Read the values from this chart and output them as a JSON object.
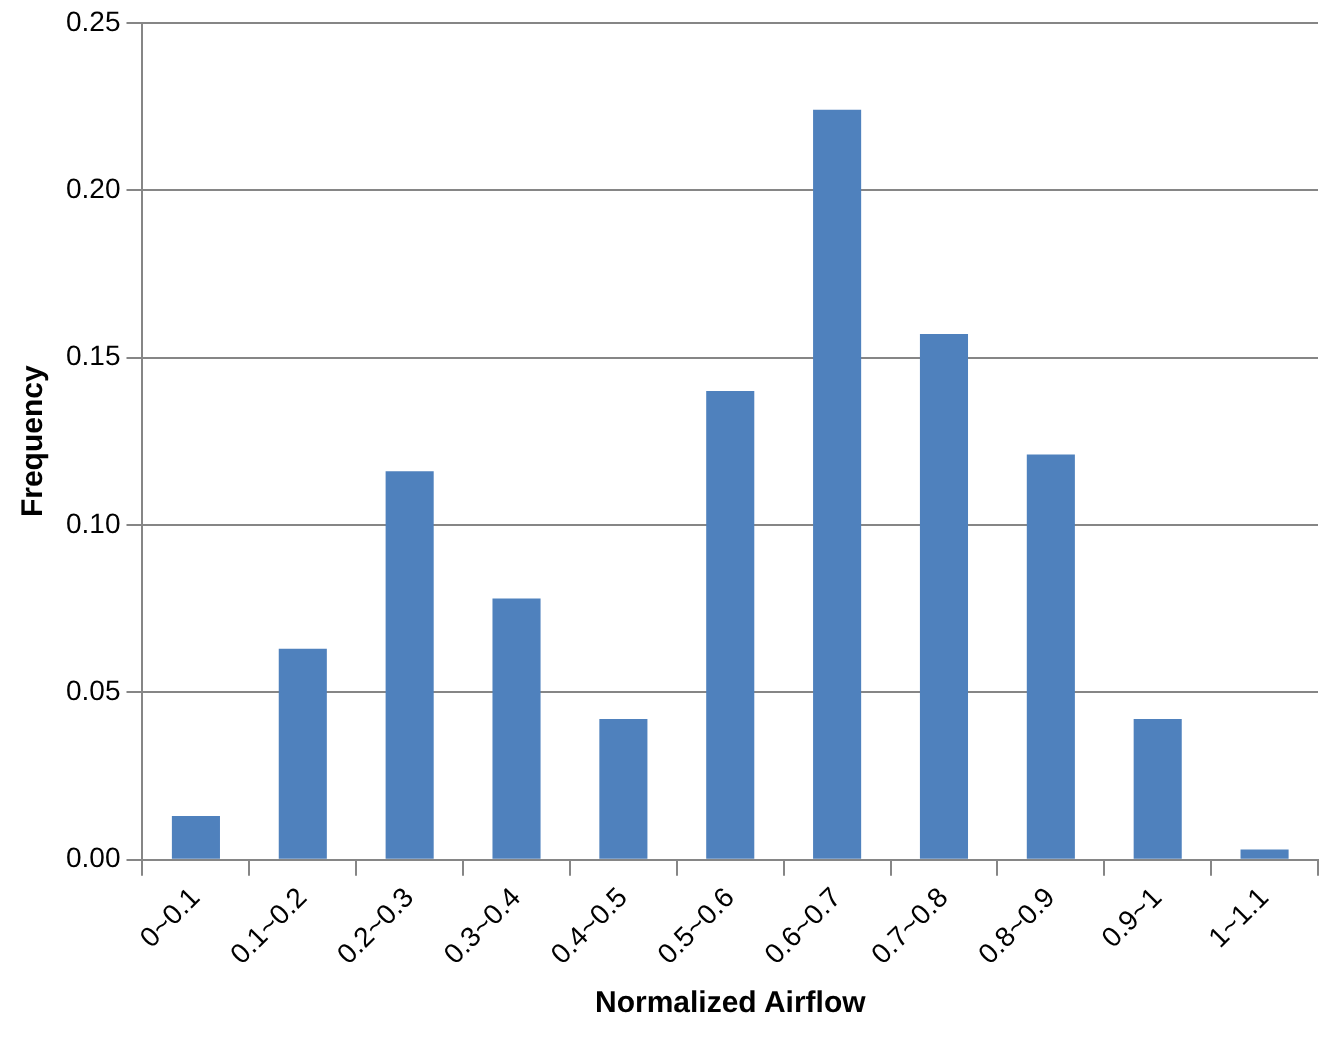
{
  "chart_data": {
    "type": "bar",
    "xlabel": "Normalized Airflow",
    "ylabel": "Frequency",
    "categories": [
      "0~0.1",
      "0.1~0.2",
      "0.2~0.3",
      "0.3~0.4",
      "0.4~0.5",
      "0.5~0.6",
      "0.6~0.7",
      "0.7~0.8",
      "0.8~0.9",
      "0.9~1",
      "1~1.1"
    ],
    "values": [
      0.013,
      0.063,
      0.116,
      0.078,
      0.042,
      0.14,
      0.224,
      0.157,
      0.121,
      0.042,
      0.003
    ],
    "color": "#4f81bd",
    "ylim": [
      0,
      0.25
    ],
    "yticks": [
      {
        "value": 0,
        "label": "0.00"
      },
      {
        "value": 0.05,
        "label": "0.05"
      },
      {
        "value": 0.1,
        "label": "0.10"
      },
      {
        "value": 0.15,
        "label": "0.15"
      },
      {
        "value": 0.2,
        "label": "0.20"
      },
      {
        "value": 0.25,
        "label": "0.25"
      }
    ],
    "grid": "y",
    "legend": false
  }
}
